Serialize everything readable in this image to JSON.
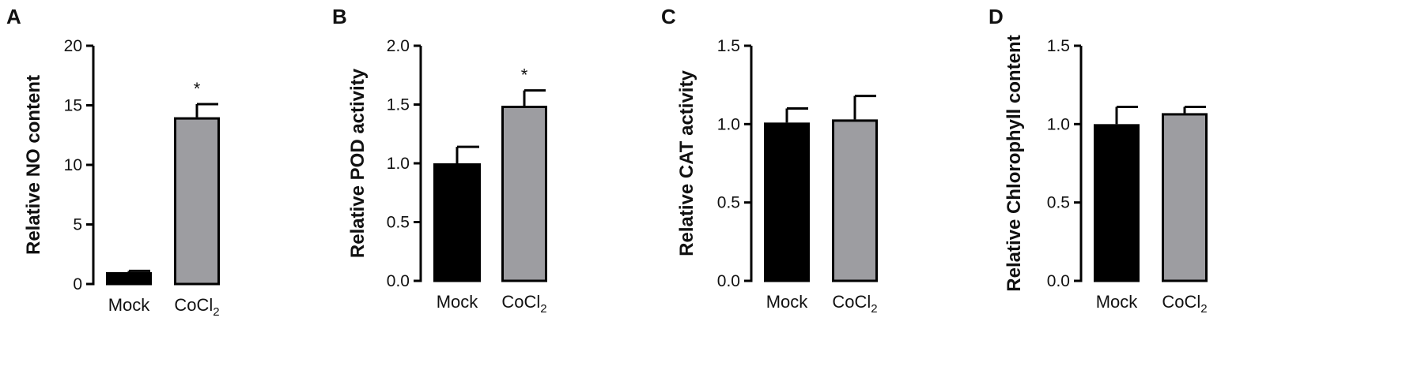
{
  "colors": {
    "mock": "#000000",
    "cocl2": "#9d9da1",
    "axis": "#000000"
  },
  "chart_data": [
    {
      "type": "bar",
      "panel": "A",
      "ylabel": "Relative NO content",
      "categories": [
        "Mock",
        "CoCl2"
      ],
      "category_display": [
        {
          "base": "Mock",
          "sub": ""
        },
        {
          "base": "CoCl",
          "sub": "2"
        }
      ],
      "values": [
        1.0,
        14.0
      ],
      "errors": [
        0.1,
        1.1
      ],
      "significance": [
        "",
        "*"
      ],
      "ylim": [
        0,
        20
      ],
      "yticks": [
        0,
        5,
        10,
        15,
        20
      ],
      "ytick_labels": [
        "0",
        "5",
        "10",
        "15",
        "20"
      ]
    },
    {
      "type": "bar",
      "panel": "B",
      "ylabel": "Relative POD activity",
      "categories": [
        "Mock",
        "CoCl2"
      ],
      "category_display": [
        {
          "base": "Mock",
          "sub": ""
        },
        {
          "base": "CoCl",
          "sub": "2"
        }
      ],
      "values": [
        1.0,
        1.49
      ],
      "errors": [
        0.14,
        0.13
      ],
      "significance": [
        "",
        "*"
      ],
      "ylim": [
        0,
        2.0
      ],
      "yticks": [
        0,
        0.5,
        1.0,
        1.5,
        2.0
      ],
      "ytick_labels": [
        "0.0",
        "0.5",
        "1.0",
        "1.5",
        "2.0"
      ]
    },
    {
      "type": "bar",
      "panel": "C",
      "ylabel": "Relative CAT activity",
      "categories": [
        "Mock",
        "CoCl2"
      ],
      "category_display": [
        {
          "base": "Mock",
          "sub": ""
        },
        {
          "base": "CoCl",
          "sub": "2"
        }
      ],
      "values": [
        1.01,
        1.03
      ],
      "errors": [
        0.09,
        0.15
      ],
      "significance": [
        "",
        ""
      ],
      "ylim": [
        0,
        1.5
      ],
      "yticks": [
        0,
        0.5,
        1.0,
        1.5
      ],
      "ytick_labels": [
        "0.0",
        "0.5",
        "1.0",
        "1.5"
      ]
    },
    {
      "type": "bar",
      "panel": "D",
      "ylabel": "Relative Chlorophyll content",
      "categories": [
        "Mock",
        "CoCl2"
      ],
      "category_display": [
        {
          "base": "Mock",
          "sub": ""
        },
        {
          "base": "CoCl",
          "sub": "2"
        }
      ],
      "values": [
        1.0,
        1.07
      ],
      "errors": [
        0.11,
        0.04
      ],
      "significance": [
        "",
        ""
      ],
      "ylim": [
        0,
        1.5
      ],
      "yticks": [
        0,
        0.5,
        1.0,
        1.5
      ],
      "ytick_labels": [
        "0.0",
        "0.5",
        "1.0",
        "1.5"
      ]
    }
  ]
}
